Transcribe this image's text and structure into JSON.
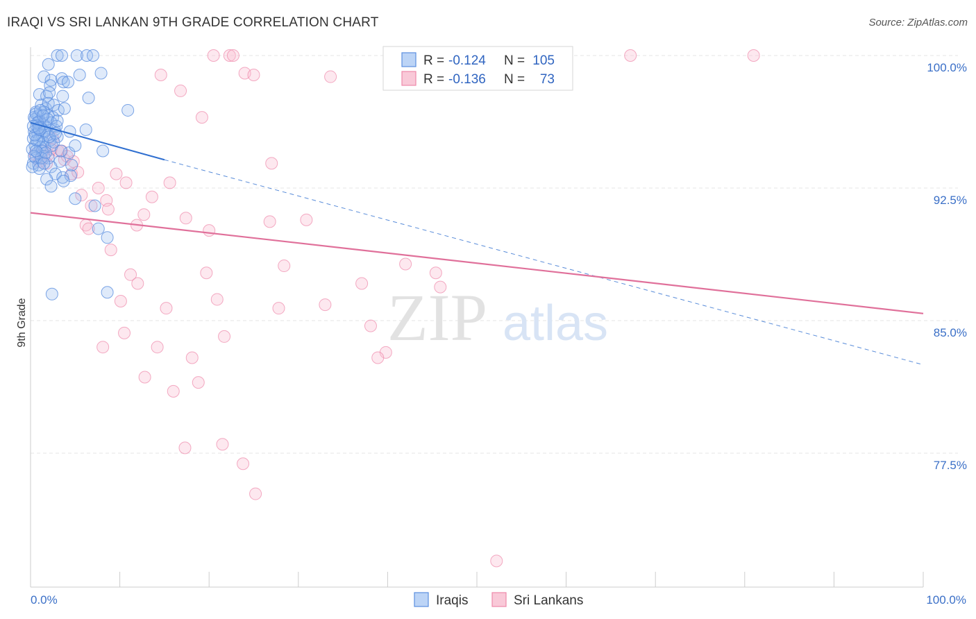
{
  "title": "IRAQI VS SRI LANKAN 9TH GRADE CORRELATION CHART",
  "source": "Source: ZipAtlas.com",
  "watermark": {
    "zip": "ZIP",
    "atlas": "atlas"
  },
  "colors": {
    "iraqis": "#5b8fe0",
    "sri_lankans": "#ee88aa",
    "iraqis_line": "#2f6fd0",
    "sri_lankans_line": "#e0709a",
    "tick": "#3a6fc7"
  },
  "legend": {
    "iraqis": {
      "r_label": "R =",
      "r_value": "-0.124",
      "n_label": "N =",
      "n_value": "105"
    },
    "sri_lankans": {
      "r_label": "R =",
      "r_value": "-0.136",
      "n_label": "N =",
      "n_value": "73"
    }
  },
  "bottom_legend": {
    "iraqis": "Iraqis",
    "sri_lankans": "Sri Lankans"
  },
  "chart_data": {
    "type": "scatter",
    "title": "IRAQI VS SRI LANKAN 9TH GRADE CORRELATION CHART",
    "xlabel": "",
    "ylabel": "9th Grade",
    "xlim": [
      0,
      100
    ],
    "ylim": [
      71.5,
      101
    ],
    "x_tick_labels": [
      "0.0%",
      "100.0%"
    ],
    "y_ticks": [
      {
        "value": 100.0,
        "label": "100.0%"
      },
      {
        "value": 92.5,
        "label": "92.5%"
      },
      {
        "value": 85.0,
        "label": "85.0%"
      },
      {
        "value": 77.5,
        "label": "77.5%"
      }
    ],
    "series": [
      {
        "name": "Iraqis",
        "trend": {
          "x0": 0,
          "y0": 96.2,
          "x1": 15,
          "y1": 94.1,
          "dashed_to_x": 100,
          "dashed_to_y": 82.5
        },
        "points": [
          [
            3.0,
            100.0
          ],
          [
            3.5,
            100.0
          ],
          [
            5.2,
            100.0
          ],
          [
            6.3,
            100.0
          ],
          [
            7.0,
            100.0
          ],
          [
            2.0,
            99.5
          ],
          [
            1.5,
            98.8
          ],
          [
            2.3,
            98.6
          ],
          [
            3.5,
            98.7
          ],
          [
            3.7,
            98.5
          ],
          [
            4.2,
            98.5
          ],
          [
            5.5,
            98.9
          ],
          [
            7.9,
            99.0
          ],
          [
            2.2,
            98.3
          ],
          [
            1.0,
            97.8
          ],
          [
            1.8,
            97.7
          ],
          [
            2.1,
            97.9
          ],
          [
            3.6,
            97.7
          ],
          [
            6.5,
            97.6
          ],
          [
            1.2,
            97.2
          ],
          [
            1.7,
            97.0
          ],
          [
            2.0,
            97.3
          ],
          [
            2.6,
            97.2
          ],
          [
            3.1,
            96.9
          ],
          [
            3.8,
            97.0
          ],
          [
            0.6,
            96.8
          ],
          [
            0.9,
            96.6
          ],
          [
            1.5,
            96.8
          ],
          [
            2.0,
            96.6
          ],
          [
            2.5,
            96.5
          ],
          [
            0.5,
            96.4
          ],
          [
            1.0,
            96.3
          ],
          [
            1.4,
            96.1
          ],
          [
            2.3,
            96.2
          ],
          [
            0.7,
            96.0
          ],
          [
            1.2,
            95.9
          ],
          [
            1.8,
            95.9
          ],
          [
            2.7,
            95.8
          ],
          [
            0.4,
            95.7
          ],
          [
            0.8,
            95.6
          ],
          [
            1.3,
            95.5
          ],
          [
            1.9,
            95.5
          ],
          [
            3.0,
            95.4
          ],
          [
            4.4,
            95.7
          ],
          [
            6.2,
            95.8
          ],
          [
            0.3,
            95.3
          ],
          [
            0.9,
            95.2
          ],
          [
            1.4,
            95.1
          ],
          [
            2.2,
            95.2
          ],
          [
            0.5,
            94.9
          ],
          [
            1.1,
            94.8
          ],
          [
            1.6,
            94.8
          ],
          [
            2.4,
            94.9
          ],
          [
            0.2,
            94.7
          ],
          [
            0.8,
            94.5
          ],
          [
            1.3,
            94.6
          ],
          [
            4.3,
            94.5
          ],
          [
            5.0,
            94.9
          ],
          [
            8.1,
            94.6
          ],
          [
            0.6,
            94.2
          ],
          [
            1.5,
            94.3
          ],
          [
            2.0,
            94.2
          ],
          [
            3.3,
            94.0
          ],
          [
            0.3,
            93.9
          ],
          [
            0.9,
            93.8
          ],
          [
            2.3,
            93.7
          ],
          [
            4.6,
            93.8
          ],
          [
            0.2,
            93.7
          ],
          [
            1.0,
            93.6
          ],
          [
            2.8,
            93.3
          ],
          [
            3.6,
            93.1
          ],
          [
            4.5,
            93.2
          ],
          [
            1.8,
            93.0
          ],
          [
            3.7,
            92.9
          ],
          [
            2.3,
            92.6
          ],
          [
            5.0,
            91.9
          ],
          [
            7.2,
            91.5
          ],
          [
            7.6,
            90.2
          ],
          [
            8.6,
            89.7
          ],
          [
            8.6,
            86.6
          ],
          [
            2.4,
            86.5
          ],
          [
            10.9,
            96.9
          ],
          [
            0.4,
            96.5
          ],
          [
            0.6,
            96.7
          ],
          [
            1.1,
            96.9
          ],
          [
            0.7,
            95.2
          ],
          [
            1.6,
            95.7
          ],
          [
            2.6,
            95.1
          ],
          [
            0.4,
            94.3
          ],
          [
            3.4,
            94.6
          ],
          [
            1.2,
            94.2
          ],
          [
            1.9,
            96.4
          ],
          [
            2.9,
            96.0
          ],
          [
            0.5,
            95.5
          ],
          [
            1.0,
            95.8
          ],
          [
            1.7,
            94.5
          ],
          [
            0.8,
            96.2
          ],
          [
            2.1,
            95.4
          ],
          [
            3.0,
            96.3
          ],
          [
            0.3,
            96.0
          ],
          [
            1.4,
            96.6
          ],
          [
            2.8,
            95.6
          ],
          [
            0.6,
            94.6
          ],
          [
            1.5,
            93.9
          ],
          [
            0.9,
            95.9
          ]
        ]
      },
      {
        "name": "Sri Lankans",
        "trend": {
          "x0": 0,
          "y0": 91.1,
          "x1": 100,
          "y1": 85.4
        },
        "points": [
          [
            20.5,
            100.0
          ],
          [
            22.3,
            100.0
          ],
          [
            22.7,
            100.0
          ],
          [
            67.2,
            100.0
          ],
          [
            81.0,
            100.0
          ],
          [
            14.6,
            98.9
          ],
          [
            24.0,
            99.0
          ],
          [
            25.0,
            98.9
          ],
          [
            33.6,
            98.8
          ],
          [
            16.8,
            98.0
          ],
          [
            19.2,
            96.5
          ],
          [
            27.0,
            93.9
          ],
          [
            2.5,
            95.3
          ],
          [
            3.1,
            94.6
          ],
          [
            3.8,
            94.1
          ],
          [
            4.6,
            93.3
          ],
          [
            1.5,
            94.6
          ],
          [
            2.0,
            94.4
          ],
          [
            3.5,
            94.6
          ],
          [
            4.8,
            94.0
          ],
          [
            9.6,
            93.3
          ],
          [
            10.7,
            92.8
          ],
          [
            15.6,
            92.8
          ],
          [
            7.6,
            92.5
          ],
          [
            5.7,
            92.1
          ],
          [
            13.6,
            92.0
          ],
          [
            8.5,
            91.8
          ],
          [
            6.8,
            91.5
          ],
          [
            8.7,
            91.3
          ],
          [
            12.7,
            91.0
          ],
          [
            17.4,
            90.8
          ],
          [
            6.2,
            90.4
          ],
          [
            11.9,
            90.4
          ],
          [
            26.8,
            90.6
          ],
          [
            30.9,
            90.7
          ],
          [
            6.5,
            90.2
          ],
          [
            20.0,
            90.1
          ],
          [
            9.0,
            89.0
          ],
          [
            28.4,
            88.1
          ],
          [
            42.0,
            88.2
          ],
          [
            11.2,
            87.6
          ],
          [
            19.7,
            87.7
          ],
          [
            45.4,
            87.7
          ],
          [
            12.0,
            87.1
          ],
          [
            37.1,
            87.1
          ],
          [
            45.9,
            86.9
          ],
          [
            10.1,
            86.1
          ],
          [
            20.9,
            86.2
          ],
          [
            15.2,
            85.7
          ],
          [
            27.8,
            85.7
          ],
          [
            33.0,
            85.9
          ],
          [
            38.1,
            84.7
          ],
          [
            10.5,
            84.3
          ],
          [
            21.7,
            84.1
          ],
          [
            8.1,
            83.5
          ],
          [
            14.2,
            83.5
          ],
          [
            39.8,
            83.2
          ],
          [
            18.1,
            82.9
          ],
          [
            38.9,
            82.9
          ],
          [
            12.8,
            81.8
          ],
          [
            18.8,
            81.5
          ],
          [
            16.0,
            81.0
          ],
          [
            17.3,
            77.8
          ],
          [
            21.5,
            78.0
          ],
          [
            23.8,
            76.9
          ],
          [
            25.2,
            75.2
          ],
          [
            52.2,
            71.4
          ],
          [
            0.5,
            94.4
          ],
          [
            1.0,
            94.0
          ],
          [
            2.3,
            94.7
          ],
          [
            5.3,
            93.4
          ],
          [
            4.1,
            94.3
          ],
          [
            1.8,
            93.9
          ]
        ]
      }
    ]
  }
}
